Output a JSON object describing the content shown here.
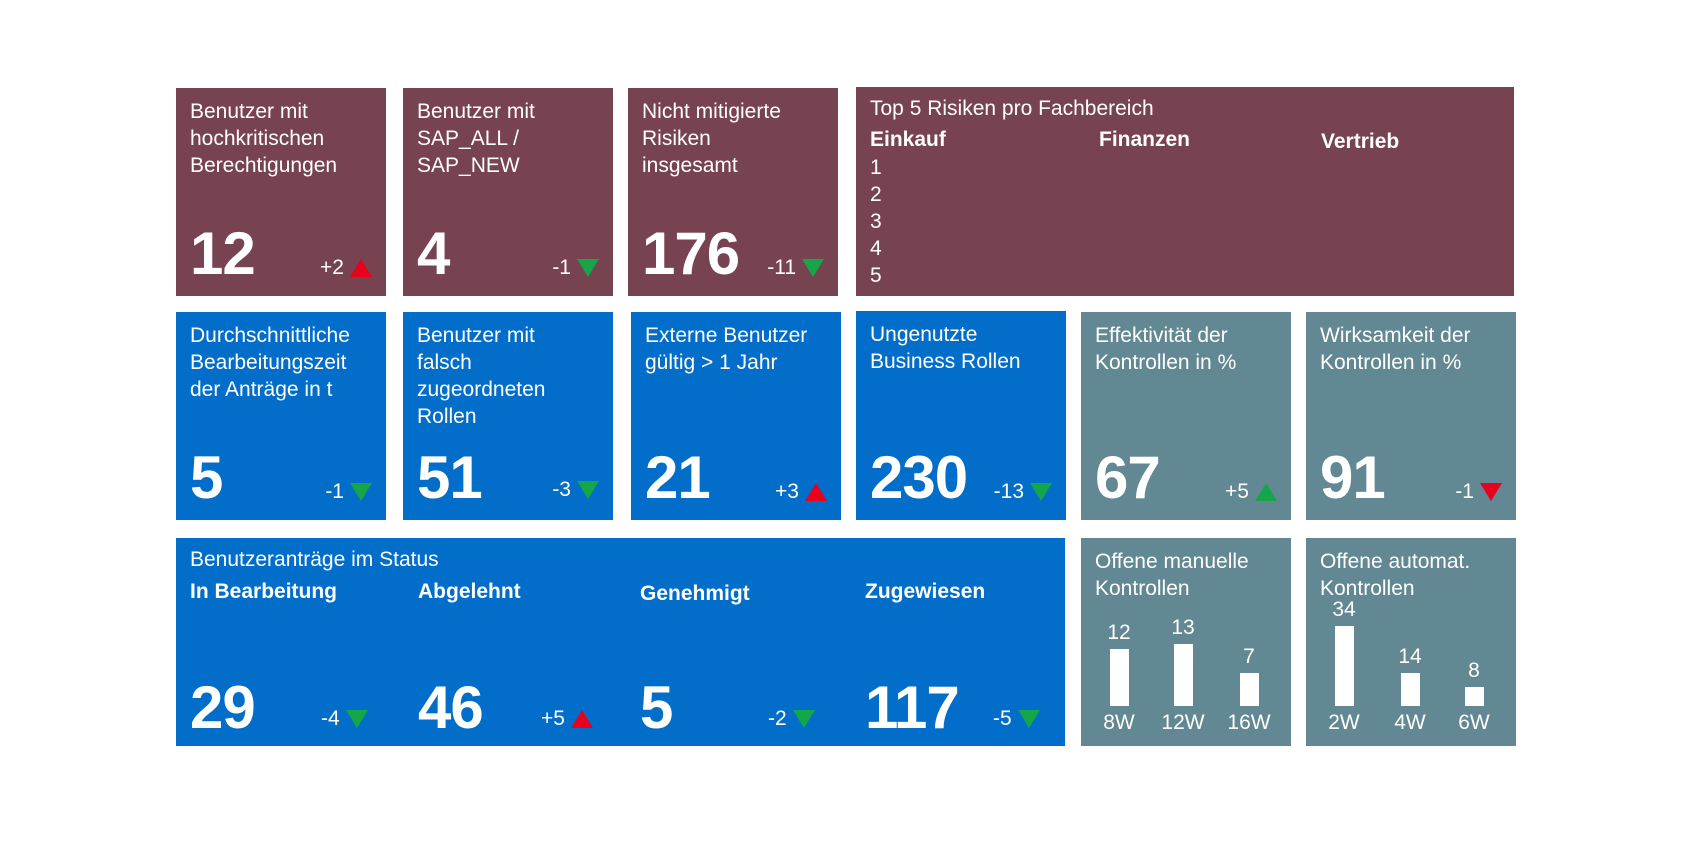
{
  "colors": {
    "maroon": "#774351",
    "blue": "#036ec9",
    "slate": "#628893",
    "up_red": "#e8001c",
    "down_green": "#15a64a"
  },
  "row1": {
    "t1": {
      "title": "Benutzer mit hochkritischen Berechtigungen",
      "value": "12",
      "delta": "+2",
      "trend": "up-red"
    },
    "t2": {
      "title": "Benutzer mit SAP_ALL / SAP_NEW",
      "value": "4",
      "delta": "-1",
      "trend": "down-green"
    },
    "t3": {
      "title": "Nicht mitigierte Risiken insgesamt",
      "value": "176",
      "delta": "-11",
      "trend": "down-green"
    },
    "risks": {
      "title": "Top 5 Risiken pro Fachbereich",
      "columns": [
        "Einkauf",
        "Finanzen",
        "Vertrieb"
      ],
      "ranks": [
        "1",
        "2",
        "3",
        "4",
        "5"
      ]
    }
  },
  "row2": {
    "t1": {
      "title": "Durchschnittliche Bearbeitungszeit der Anträge in t",
      "value": "5",
      "delta": "-1",
      "trend": "down-green"
    },
    "t2": {
      "title": "Benutzer mit falsch zugeordneten Rollen",
      "value": "51",
      "delta": "-3",
      "trend": "down-green"
    },
    "t3": {
      "title": "Externe Benutzer gültig > 1 Jahr",
      "value": "21",
      "delta": "+3",
      "trend": "up-red"
    },
    "t4": {
      "title": "Ungenutzte Business Rollen",
      "value": "230",
      "delta": "-13",
      "trend": "down-green"
    },
    "t5": {
      "title": "Effektivität der Kontrollen in %",
      "value": "67",
      "delta": "+5",
      "trend": "up-green"
    },
    "t6": {
      "title": "Wirksamkeit der Kontrollen in %",
      "value": "91",
      "delta": "-1",
      "trend": "down-red"
    }
  },
  "row3": {
    "status": {
      "title": "Benutzeranträge im Status",
      "items": [
        {
          "label": "In Bearbeitung",
          "value": "29",
          "delta": "-4",
          "trend": "down-green"
        },
        {
          "label": "Abgelehnt",
          "value": "46",
          "delta": "+5",
          "trend": "up-red"
        },
        {
          "label": "Genehmigt",
          "value": "5",
          "delta": "-2",
          "trend": "down-green"
        },
        {
          "label": "Zugewiesen",
          "value": "117",
          "delta": "-5",
          "trend": "down-green"
        }
      ]
    },
    "manual": {
      "title": "Offene manuelle Kontrollen",
      "bars": [
        {
          "label": "8W",
          "value": 12
        },
        {
          "label": "12W",
          "value": 13
        },
        {
          "label": "16W",
          "value": 7
        }
      ]
    },
    "auto": {
      "title": "Offene automat. Kontrollen",
      "bars": [
        {
          "label": "2W",
          "value": 34
        },
        {
          "label": "4W",
          "value": 14
        },
        {
          "label": "6W",
          "value": 8
        }
      ]
    }
  }
}
